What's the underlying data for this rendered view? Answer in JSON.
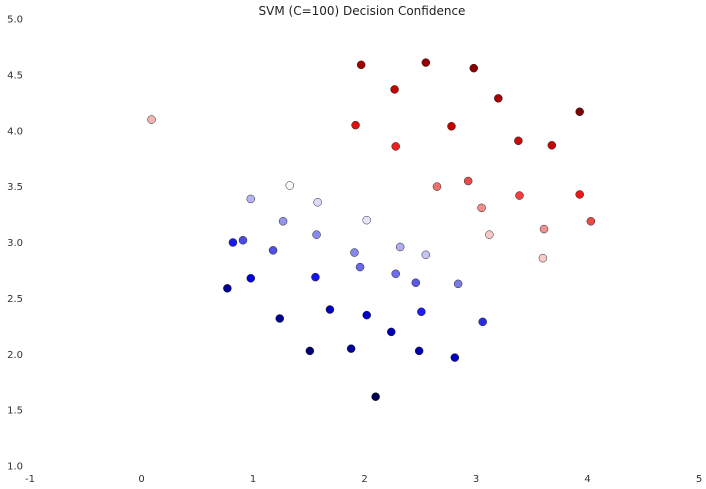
{
  "chart_data": {
    "type": "scatter",
    "title": "SVM (C=100) Decision Confidence",
    "xlabel": "",
    "ylabel": "",
    "xlim": [
      -1,
      5
    ],
    "ylim": [
      1.0,
      5.0
    ],
    "xticks": [
      "-1",
      "0",
      "1",
      "2",
      "3",
      "4",
      "5"
    ],
    "yticks": [
      "1.0",
      "1.5",
      "2.0",
      "2.5",
      "3.0",
      "3.5",
      "4.0",
      "4.5",
      "5.0"
    ],
    "grid": false,
    "points": [
      {
        "x": 1.97,
        "y": 4.59,
        "color": "#a50000"
      },
      {
        "x": 2.55,
        "y": 4.61,
        "color": "#930000"
      },
      {
        "x": 2.98,
        "y": 4.56,
        "color": "#8a0000"
      },
      {
        "x": 2.27,
        "y": 4.37,
        "color": "#c70000"
      },
      {
        "x": 3.2,
        "y": 4.29,
        "color": "#a80000"
      },
      {
        "x": 3.93,
        "y": 4.17,
        "color": "#7f0000"
      },
      {
        "x": 1.92,
        "y": 4.05,
        "color": "#e11010"
      },
      {
        "x": 2.78,
        "y": 4.04,
        "color": "#c40000"
      },
      {
        "x": 3.38,
        "y": 3.91,
        "color": "#cc0a0a"
      },
      {
        "x": 2.28,
        "y": 3.86,
        "color": "#e82020"
      },
      {
        "x": 3.68,
        "y": 3.87,
        "color": "#c40505"
      },
      {
        "x": 2.65,
        "y": 3.5,
        "color": "#f07070"
      },
      {
        "x": 2.93,
        "y": 3.55,
        "color": "#ea4a4a"
      },
      {
        "x": 3.39,
        "y": 3.42,
        "color": "#ee4040"
      },
      {
        "x": 3.93,
        "y": 3.43,
        "color": "#e81818"
      },
      {
        "x": 3.05,
        "y": 3.31,
        "color": "#f28c8c"
      },
      {
        "x": 4.03,
        "y": 3.19,
        "color": "#ee4848"
      },
      {
        "x": 3.61,
        "y": 3.12,
        "color": "#f29090"
      },
      {
        "x": 3.12,
        "y": 3.07,
        "color": "#f8c8c8"
      },
      {
        "x": 3.6,
        "y": 2.86,
        "color": "#f8caca"
      },
      {
        "x": 0.09,
        "y": 4.1,
        "color": "#f4b4b4"
      },
      {
        "x": 1.33,
        "y": 3.51,
        "color": "#fafafa"
      },
      {
        "x": 0.98,
        "y": 3.39,
        "color": "#b4b4f4"
      },
      {
        "x": 1.58,
        "y": 3.36,
        "color": "#dcdcfa"
      },
      {
        "x": 2.02,
        "y": 3.2,
        "color": "#e4e4fb"
      },
      {
        "x": 1.27,
        "y": 3.19,
        "color": "#9494ee"
      },
      {
        "x": 1.57,
        "y": 3.07,
        "color": "#8a8aee"
      },
      {
        "x": 0.91,
        "y": 3.02,
        "color": "#4a4ae8"
      },
      {
        "x": 0.82,
        "y": 3.0,
        "color": "#1a1aea"
      },
      {
        "x": 2.32,
        "y": 2.96,
        "color": "#aeaef2"
      },
      {
        "x": 1.18,
        "y": 2.93,
        "color": "#5050e4"
      },
      {
        "x": 1.91,
        "y": 2.91,
        "color": "#8888ee"
      },
      {
        "x": 2.55,
        "y": 2.89,
        "color": "#c4c4f6"
      },
      {
        "x": 1.96,
        "y": 2.78,
        "color": "#6a6ae8"
      },
      {
        "x": 2.28,
        "y": 2.72,
        "color": "#6e6eea"
      },
      {
        "x": 0.98,
        "y": 2.68,
        "color": "#0000d8"
      },
      {
        "x": 1.56,
        "y": 2.69,
        "color": "#1414e8"
      },
      {
        "x": 2.46,
        "y": 2.64,
        "color": "#5a5ae0"
      },
      {
        "x": 2.84,
        "y": 2.63,
        "color": "#7a7ae8"
      },
      {
        "x": 0.77,
        "y": 2.59,
        "color": "#000098"
      },
      {
        "x": 1.69,
        "y": 2.4,
        "color": "#0000bc"
      },
      {
        "x": 2.51,
        "y": 2.38,
        "color": "#1e1ef2"
      },
      {
        "x": 2.02,
        "y": 2.35,
        "color": "#0000c8"
      },
      {
        "x": 1.24,
        "y": 2.32,
        "color": "#000090"
      },
      {
        "x": 3.06,
        "y": 2.29,
        "color": "#2a2ae8"
      },
      {
        "x": 2.24,
        "y": 2.2,
        "color": "#0000ae"
      },
      {
        "x": 1.88,
        "y": 2.05,
        "color": "#00009a"
      },
      {
        "x": 2.49,
        "y": 2.03,
        "color": "#0000a8"
      },
      {
        "x": 1.51,
        "y": 2.03,
        "color": "#000070"
      },
      {
        "x": 2.81,
        "y": 1.97,
        "color": "#0000c4"
      },
      {
        "x": 2.1,
        "y": 1.62,
        "color": "#000050"
      }
    ]
  }
}
